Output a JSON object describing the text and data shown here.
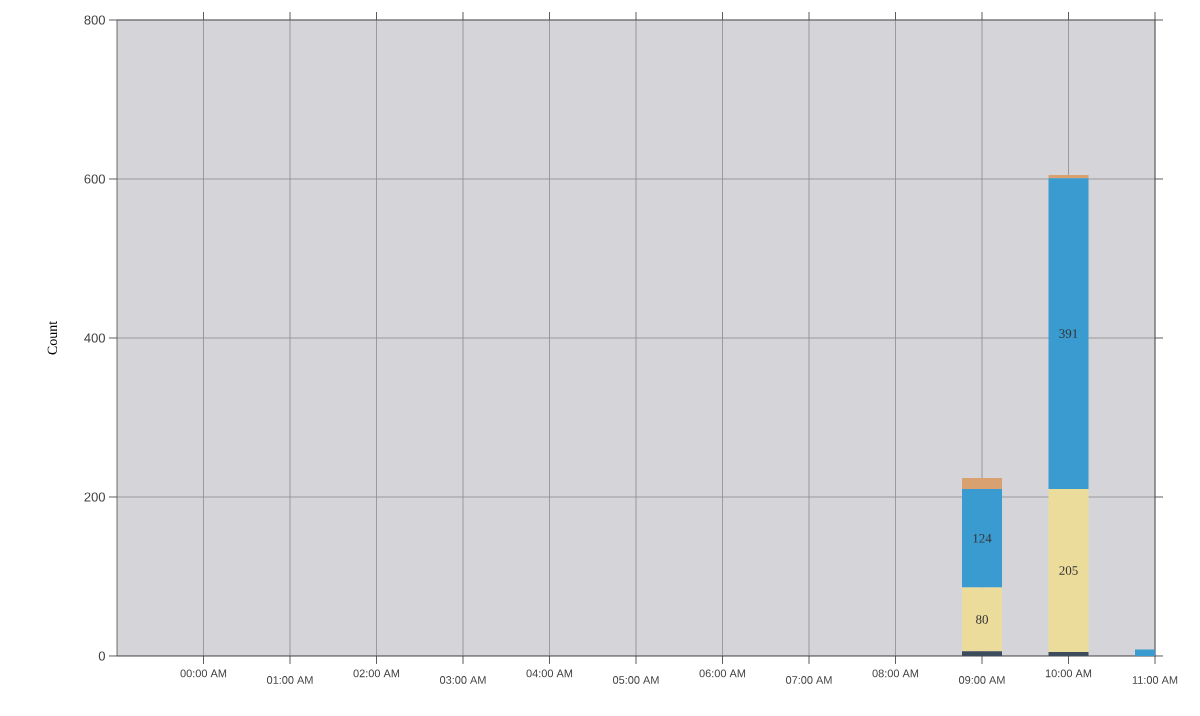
{
  "chart_data": {
    "type": "bar",
    "stacked": true,
    "ylabel": "Count",
    "categories": [
      "00:00 AM",
      "01:00 AM",
      "02:00 AM",
      "03:00 AM",
      "04:00 AM",
      "05:00 AM",
      "06:00 AM",
      "07:00 AM",
      "08:00 AM",
      "09:00 AM",
      "10:00 AM",
      "11:00 AM"
    ],
    "series": [
      {
        "color": "#3c4c5c",
        "values": [
          null,
          null,
          null,
          null,
          null,
          null,
          null,
          null,
          null,
          6,
          5,
          null
        ]
      },
      {
        "color": "#ecdc9c",
        "values": [
          null,
          null,
          null,
          null,
          null,
          null,
          null,
          null,
          null,
          80,
          205,
          null
        ],
        "value_labels": [
          null,
          null,
          null,
          null,
          null,
          null,
          null,
          null,
          null,
          "80",
          "205",
          null
        ]
      },
      {
        "color": "#3a9bd0",
        "values": [
          null,
          null,
          null,
          null,
          null,
          null,
          null,
          null,
          null,
          124,
          391,
          8
        ],
        "value_labels": [
          null,
          null,
          null,
          null,
          null,
          null,
          null,
          null,
          null,
          "124",
          "391",
          null
        ]
      },
      {
        "color": "#d9a070",
        "values": [
          null,
          null,
          null,
          null,
          null,
          null,
          null,
          null,
          null,
          14,
          4,
          null
        ]
      }
    ],
    "ylim": [
      0,
      800
    ],
    "yticks": [
      0,
      200,
      400,
      600,
      800
    ],
    "grid": true
  }
}
